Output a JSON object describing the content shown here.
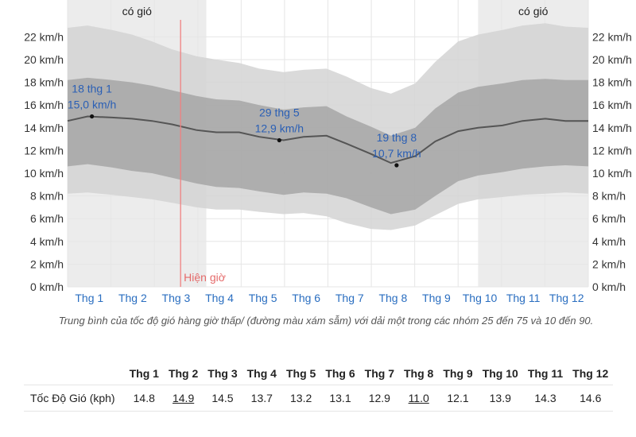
{
  "chart_data": {
    "type": "area",
    "ylabel_unit": "km/h",
    "ylim": [
      0,
      23
    ],
    "y_ticks": [
      "0 km/h",
      "2 km/h",
      "4 km/h",
      "6 km/h",
      "8 km/h",
      "10 km/h",
      "12 km/h",
      "14 km/h",
      "16 km/h",
      "18 km/h",
      "20 km/h",
      "22 km/h"
    ],
    "y_tick_values": [
      0,
      2,
      4,
      6,
      8,
      10,
      12,
      14,
      16,
      18,
      20,
      22
    ],
    "months": [
      "Thg 1",
      "Thg 2",
      "Thg 3",
      "Thg 4",
      "Thg 5",
      "Thg 6",
      "Thg 7",
      "Thg 8",
      "Thg 9",
      "Thg 10",
      "Thg 11",
      "Thg 12"
    ],
    "day_of_year": [
      1,
      15,
      32,
      46,
      60,
      74,
      91,
      105,
      121,
      135,
      152,
      166,
      182,
      196,
      213,
      227,
      244,
      258,
      274,
      288,
      305,
      319,
      335,
      349,
      365
    ],
    "series": [
      {
        "values": [
          14.6,
          15.0,
          14.9,
          14.8,
          14.6,
          14.3,
          13.8,
          13.6,
          13.6,
          13.2,
          12.9,
          13.2,
          13.3,
          12.6,
          11.7,
          10.9,
          11.5,
          12.8,
          13.7,
          14.0,
          14.2,
          14.6,
          14.8,
          14.6,
          14.6
        ]
      },
      {
        "values": [
          10.6,
          10.8,
          10.5,
          10.2,
          10.0,
          9.6,
          9.1,
          8.8,
          8.7,
          8.4,
          8.1,
          8.3,
          8.2,
          7.8,
          7.0,
          6.4,
          6.8,
          8.0,
          9.3,
          9.8,
          10.1,
          10.4,
          10.6,
          10.7,
          10.6
        ]
      },
      {
        "values": [
          18.2,
          18.4,
          18.2,
          18.0,
          17.7,
          17.3,
          16.8,
          16.5,
          16.4,
          16.0,
          15.6,
          15.8,
          15.9,
          15.0,
          14.1,
          13.3,
          14.0,
          15.7,
          17.1,
          17.6,
          17.9,
          18.2,
          18.3,
          18.2,
          18.2
        ]
      },
      {
        "values": [
          8.2,
          8.3,
          8.1,
          7.9,
          7.7,
          7.4,
          7.0,
          6.8,
          6.8,
          6.6,
          6.4,
          6.5,
          6.2,
          5.6,
          5.1,
          5.0,
          5.4,
          6.3,
          7.3,
          7.7,
          7.9,
          8.1,
          8.2,
          8.3,
          8.2
        ]
      },
      {
        "values": [
          22.8,
          23.0,
          22.6,
          22.2,
          21.6,
          20.9,
          20.3,
          20.0,
          19.7,
          19.2,
          18.9,
          19.1,
          19.2,
          18.5,
          17.5,
          17.0,
          17.9,
          19.8,
          21.6,
          22.2,
          22.6,
          23.0,
          23.2,
          22.9,
          22.8
        ]
      }
    ],
    "band_labels": [
      "có gió",
      "có gió"
    ],
    "windy_periods": [
      [
        1,
        98
      ],
      [
        288,
        365
      ]
    ],
    "now_day": 80,
    "now_label": "Hiện giờ",
    "annotations": [
      {
        "day": 18,
        "value": 15.0,
        "date_text": "18 thg 1",
        "value_text": "15,0 km/h"
      },
      {
        "day": 149,
        "value": 12.9,
        "date_text": "29 thg 5",
        "value_text": "12,9 km/h"
      },
      {
        "day": 231,
        "value": 10.7,
        "date_text": "19 thg 8",
        "value_text": "10,7 km/h"
      }
    ],
    "colors": {
      "band_10_90": "#d4d4d4",
      "band_25_75": "#a9a9a9",
      "windy_shade": "#ececec",
      "median_line": "#555555",
      "now_line": "#f08080",
      "month_text": "#2a6ec0",
      "annotation_text": "#2a5fb5"
    }
  },
  "caption": "Trung bình của tốc độ gió hàng giờ thấp/ (đường màu xám sẫm) với dải một trong các nhóm 25 đến 75 và 10 đến 90.",
  "table": {
    "row_label": "Tốc Độ Gió (kph)",
    "headers": [
      "Thg 1",
      "Thg 2",
      "Thg 3",
      "Thg 4",
      "Thg 5",
      "Thg 6",
      "Thg 7",
      "Thg 8",
      "Thg 9",
      "Thg 10",
      "Thg 11",
      "Thg 12"
    ],
    "values": [
      "14.8",
      "14.9",
      "14.5",
      "13.7",
      "13.2",
      "13.1",
      "12.9",
      "11.0",
      "12.1",
      "13.9",
      "14.3",
      "14.6"
    ],
    "highlighted": [
      1,
      7
    ]
  }
}
